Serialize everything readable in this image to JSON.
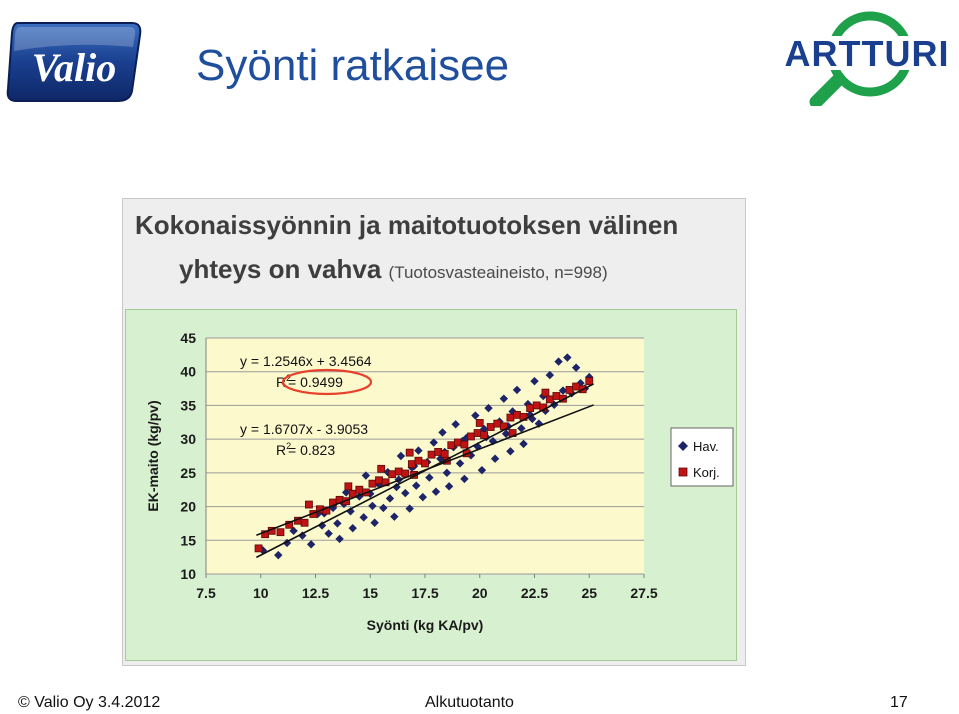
{
  "slide": {
    "title": "Syönti ratkaisee",
    "footer_copyright": "© Valio Oy 3.4.2012",
    "footer_center": "Alkutuotanto",
    "page_number": "17"
  },
  "logos": {
    "left": "Valio",
    "right": "ARTTURI"
  },
  "colors": {
    "title": "#1f4e9c",
    "chart_outer_background": "#d7f0cf",
    "plot_background": "#fcfacd",
    "series_hav": "#1e2468",
    "series_korj": "#c01414",
    "r2_highlight": "#e8412c",
    "artturi_green": "#1ea14a",
    "valio_blue": "#1a3f8f"
  },
  "chart_heading": {
    "line1": "Kokonaissyönnin ja maitotuotoksen välinen",
    "line2": "yhteys on vahva",
    "subtitle": "(Tuotosvasteaineisto, n=998)"
  },
  "chart_data": {
    "type": "scatter",
    "xlabel": "Syönti (kg KA/pv)",
    "ylabel": "EK-maito (kg/pv)",
    "xlim": [
      7.5,
      27.5
    ],
    "ylim": [
      10,
      45
    ],
    "x_ticks": [
      "7.5",
      "10",
      "12.5",
      "15",
      "17.5",
      "20",
      "22.5",
      "25",
      "27.5"
    ],
    "y_ticks": [
      "10",
      "15",
      "20",
      "25",
      "30",
      "35",
      "40",
      "45"
    ],
    "grid": "horizontal",
    "legend_position": "right",
    "series": [
      {
        "name": "Hav.",
        "marker": "diamond",
        "trend": {
          "slope": 1.6707,
          "intercept": -3.9053
        },
        "equation": "y = 1.6707x - 3.9053",
        "r2_label": "R",
        "r2_value": " = 0.823",
        "points": [
          [
            10.1,
            13.5
          ],
          [
            10.8,
            12.8
          ],
          [
            11.2,
            14.6
          ],
          [
            11.5,
            16.4
          ],
          [
            11.9,
            15.7
          ],
          [
            12.3,
            14.4
          ],
          [
            12.6,
            18.9
          ],
          [
            12.8,
            17.2
          ],
          [
            13.1,
            16.0
          ],
          [
            13.3,
            19.8
          ],
          [
            13.5,
            17.5
          ],
          [
            13.6,
            15.2
          ],
          [
            13.9,
            22.1
          ],
          [
            14.1,
            19.3
          ],
          [
            14.2,
            16.8
          ],
          [
            14.5,
            21.5
          ],
          [
            14.7,
            18.4
          ],
          [
            14.8,
            24.6
          ],
          [
            15.1,
            20.1
          ],
          [
            15.2,
            17.6
          ],
          [
            15.4,
            23.3
          ],
          [
            15.6,
            19.8
          ],
          [
            15.8,
            25.1
          ],
          [
            15.9,
            21.2
          ],
          [
            16.1,
            18.5
          ],
          [
            16.3,
            24.0
          ],
          [
            16.4,
            27.5
          ],
          [
            16.6,
            22.0
          ],
          [
            16.8,
            19.7
          ],
          [
            16.9,
            25.8
          ],
          [
            17.1,
            23.1
          ],
          [
            17.2,
            28.3
          ],
          [
            17.4,
            21.4
          ],
          [
            17.6,
            26.6
          ],
          [
            17.7,
            24.3
          ],
          [
            17.9,
            29.5
          ],
          [
            18.0,
            22.2
          ],
          [
            18.2,
            27.1
          ],
          [
            18.3,
            31.0
          ],
          [
            18.5,
            25.0
          ],
          [
            18.6,
            23.0
          ],
          [
            18.8,
            28.8
          ],
          [
            18.9,
            32.2
          ],
          [
            19.1,
            26.4
          ],
          [
            19.3,
            24.1
          ],
          [
            19.4,
            30.2
          ],
          [
            19.6,
            27.6
          ],
          [
            19.8,
            33.5
          ],
          [
            19.9,
            28.9
          ],
          [
            20.1,
            25.4
          ],
          [
            20.2,
            31.5
          ],
          [
            20.4,
            34.6
          ],
          [
            20.6,
            29.7
          ],
          [
            20.7,
            27.1
          ],
          [
            20.9,
            32.6
          ],
          [
            21.1,
            36.0
          ],
          [
            21.2,
            30.8
          ],
          [
            21.4,
            28.2
          ],
          [
            21.5,
            34.1
          ],
          [
            21.7,
            37.3
          ],
          [
            21.9,
            31.6
          ],
          [
            22.0,
            29.3
          ],
          [
            22.2,
            35.2
          ],
          [
            22.4,
            33.0
          ],
          [
            22.5,
            38.6
          ],
          [
            22.7,
            32.3
          ],
          [
            22.9,
            36.4
          ],
          [
            23.0,
            34.2
          ],
          [
            23.2,
            39.5
          ],
          [
            23.4,
            35.1
          ],
          [
            23.6,
            41.5
          ],
          [
            23.8,
            37.2
          ],
          [
            24.0,
            42.1
          ],
          [
            24.2,
            36.8
          ],
          [
            24.4,
            40.6
          ],
          [
            24.6,
            38.3
          ],
          [
            24.8,
            37.5
          ],
          [
            25.0,
            39.2
          ],
          [
            16.2,
            22.9
          ],
          [
            17.0,
            26.0
          ],
          [
            18.4,
            28.1
          ],
          [
            19.2,
            29.7
          ],
          [
            20.3,
            30.3
          ],
          [
            21.3,
            31.9
          ],
          [
            22.3,
            33.6
          ],
          [
            15.0,
            21.9
          ],
          [
            13.8,
            20.4
          ],
          [
            12.9,
            19.0
          ]
        ]
      },
      {
        "name": "Korj.",
        "marker": "square",
        "trend": {
          "slope": 1.2546,
          "intercept": 3.4564
        },
        "equation": "y = 1.2546x + 3.4564",
        "r2_label": "R",
        "r2_value": " = 0.9499",
        "points": [
          [
            9.9,
            13.8
          ],
          [
            10.2,
            15.9
          ],
          [
            10.5,
            16.4
          ],
          [
            10.9,
            16.2
          ],
          [
            11.3,
            17.3
          ],
          [
            11.7,
            17.9
          ],
          [
            12.0,
            17.6
          ],
          [
            12.4,
            18.9
          ],
          [
            12.7,
            19.6
          ],
          [
            13.0,
            19.4
          ],
          [
            13.3,
            20.6
          ],
          [
            13.6,
            21.0
          ],
          [
            13.9,
            20.8
          ],
          [
            14.2,
            21.9
          ],
          [
            14.5,
            22.5
          ],
          [
            14.8,
            22.1
          ],
          [
            15.1,
            23.4
          ],
          [
            15.4,
            23.9
          ],
          [
            15.7,
            23.6
          ],
          [
            16.0,
            24.8
          ],
          [
            16.3,
            25.2
          ],
          [
            16.6,
            24.9
          ],
          [
            16.9,
            26.3
          ],
          [
            17.2,
            26.8
          ],
          [
            17.5,
            26.4
          ],
          [
            17.8,
            27.7
          ],
          [
            18.1,
            28.1
          ],
          [
            18.4,
            27.8
          ],
          [
            18.7,
            29.1
          ],
          [
            19.0,
            29.5
          ],
          [
            19.3,
            29.2
          ],
          [
            19.6,
            30.4
          ],
          [
            19.9,
            30.9
          ],
          [
            20.2,
            30.6
          ],
          [
            20.5,
            31.8
          ],
          [
            20.8,
            32.3
          ],
          [
            21.1,
            31.9
          ],
          [
            21.4,
            33.2
          ],
          [
            21.7,
            33.6
          ],
          [
            22.0,
            33.3
          ],
          [
            22.3,
            34.6
          ],
          [
            22.6,
            35.0
          ],
          [
            22.9,
            34.7
          ],
          [
            23.2,
            35.9
          ],
          [
            23.5,
            36.4
          ],
          [
            23.8,
            36.0
          ],
          [
            24.1,
            37.3
          ],
          [
            24.4,
            37.8
          ],
          [
            24.7,
            37.4
          ],
          [
            25.0,
            38.6
          ],
          [
            14.0,
            23.0
          ],
          [
            15.5,
            25.6
          ],
          [
            17.0,
            24.7
          ],
          [
            18.5,
            26.8
          ],
          [
            20.0,
            32.4
          ],
          [
            21.5,
            30.9
          ],
          [
            23.0,
            36.9
          ],
          [
            12.2,
            20.3
          ],
          [
            16.8,
            28.0
          ],
          [
            19.4,
            27.9
          ]
        ]
      }
    ]
  }
}
